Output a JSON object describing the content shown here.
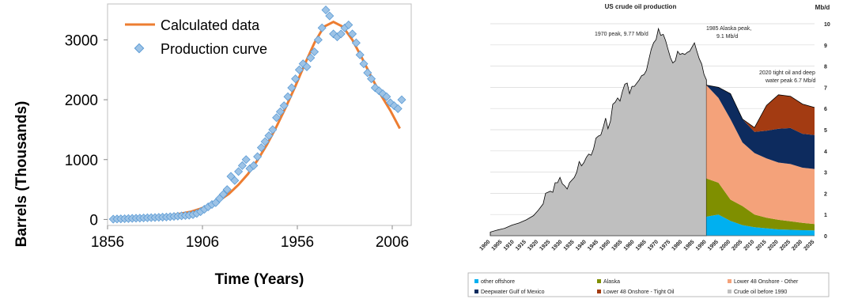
{
  "chart_data": [
    {
      "type": "scatter",
      "title": "",
      "xlabel": "Time (Years)",
      "ylabel": "Barrels (Thousands)",
      "xlim": [
        1856,
        2016
      ],
      "ylim": [
        -100,
        3600
      ],
      "x_ticks": [
        1856,
        1906,
        1956,
        2006
      ],
      "y_ticks": [
        0,
        1000,
        2000,
        3000
      ],
      "legend_position": "top-left",
      "colors": {
        "calculated": "#ed7d31",
        "production": "#9dc3e6",
        "production_edge": "#5b9bd5"
      },
      "series": [
        {
          "name": "Calculated data",
          "kind": "line",
          "x": [
            1860,
            1870,
            1880,
            1890,
            1900,
            1905,
            1910,
            1915,
            1920,
            1925,
            1930,
            1935,
            1940,
            1945,
            1950,
            1955,
            1960,
            1965,
            1970,
            1975,
            1980,
            1985,
            1990,
            1995,
            2000,
            2005,
            2010
          ],
          "y": [
            10,
            20,
            40,
            70,
            130,
            180,
            240,
            320,
            430,
            580,
            760,
            990,
            1250,
            1550,
            1880,
            2230,
            2600,
            2950,
            3220,
            3300,
            3220,
            3000,
            2700,
            2380,
            2080,
            1820,
            1520
          ]
        },
        {
          "name": "Production curve",
          "kind": "scatter",
          "x": [
            1859,
            1861,
            1863,
            1865,
            1867,
            1869,
            1871,
            1873,
            1875,
            1877,
            1879,
            1881,
            1883,
            1885,
            1887,
            1889,
            1891,
            1893,
            1895,
            1897,
            1899,
            1901,
            1903,
            1905,
            1907,
            1909,
            1911,
            1913,
            1915,
            1917,
            1919,
            1921,
            1923,
            1925,
            1927,
            1929,
            1931,
            1933,
            1935,
            1937,
            1939,
            1941,
            1943,
            1945,
            1947,
            1949,
            1951,
            1953,
            1955,
            1957,
            1959,
            1961,
            1963,
            1965,
            1967,
            1969,
            1971,
            1973,
            1975,
            1977,
            1979,
            1981,
            1983,
            1985,
            1987,
            1989,
            1991,
            1993,
            1995,
            1997,
            1999,
            2001,
            2003,
            2005,
            2007,
            2009,
            2011
          ],
          "y": [
            5,
            8,
            10,
            12,
            15,
            18,
            20,
            22,
            25,
            28,
            30,
            32,
            35,
            38,
            40,
            45,
            50,
            55,
            60,
            65,
            70,
            80,
            100,
            130,
            170,
            210,
            250,
            280,
            350,
            420,
            500,
            720,
            650,
            800,
            900,
            1000,
            850,
            900,
            1050,
            1200,
            1300,
            1400,
            1500,
            1700,
            1800,
            1900,
            2050,
            2200,
            2350,
            2500,
            2600,
            2550,
            2700,
            2800,
            3000,
            3200,
            3500,
            3400,
            3100,
            3050,
            3100,
            3200,
            3250,
            3100,
            2950,
            2750,
            2600,
            2450,
            2350,
            2200,
            2150,
            2100,
            2050,
            1950,
            1900,
            1850,
            2000
          ]
        }
      ]
    },
    {
      "type": "area",
      "title": "US crude oil production",
      "unit_label": "Mb/d",
      "ylim": [
        0,
        10
      ],
      "y_ticks": [
        "0",
        "1",
        "2",
        "3",
        "4",
        "5",
        "6",
        "7",
        "8",
        "9",
        "10"
      ],
      "x_tick_labels": [
        "1900",
        "1905",
        "1910",
        "1915",
        "1920",
        "1925",
        "1930",
        "1935",
        "1940",
        "1945",
        "1950",
        "1955",
        "1960",
        "1965",
        "1970",
        "1975",
        "1980",
        "1985",
        "1990",
        "1995",
        "2000",
        "2005",
        "2010",
        "2015",
        "2020",
        "2025",
        "2030",
        "2035"
      ],
      "annotations": [
        {
          "text_lines": [
            "1970 peak, 9.77 Mb/d"
          ]
        },
        {
          "text_lines": [
            "1985 Alaska peak,",
            "9.1 Mb/d"
          ]
        },
        {
          "text_lines": [
            "2020 tight oil and deep",
            "water peak 6.7 Mb/d"
          ]
        }
      ],
      "legend": [
        {
          "label": "other offshore",
          "color": "#00b0f0"
        },
        {
          "label": "Alaska",
          "color": "#7f8f00"
        },
        {
          "label": "Lower 48 Onshore - Other",
          "color": "#f4a27a"
        },
        {
          "label": "Deepwater Gulf of Mexico",
          "color": "#0d2b5e"
        },
        {
          "label": "Lower 48 Onshore - Tight Oil",
          "color": "#a33b12"
        },
        {
          "label": "Crude oil before 1990",
          "color": "#bfbfbf"
        }
      ],
      "series": [
        {
          "name": "Crude oil before 1990",
          "x": [
            1900,
            1903,
            1906,
            1909,
            1912,
            1915,
            1918,
            1920,
            1922,
            1923,
            1925,
            1926,
            1927,
            1928,
            1929,
            1930,
            1931,
            1932,
            1933,
            1935,
            1936,
            1937,
            1938,
            1939,
            1940,
            1941,
            1942,
            1943,
            1944,
            1945,
            1946,
            1947,
            1948,
            1949,
            1950,
            1951,
            1952,
            1953,
            1954,
            1955,
            1956,
            1957,
            1958,
            1959,
            1960,
            1961,
            1962,
            1963,
            1964,
            1965,
            1966,
            1967,
            1968,
            1969,
            1970,
            1971,
            1972,
            1973,
            1974,
            1975,
            1976,
            1977,
            1978,
            1979,
            1980,
            1981,
            1982,
            1983,
            1984,
            1985,
            1986,
            1987,
            1988,
            1989,
            1990
          ],
          "y": [
            0.17,
            0.27,
            0.35,
            0.5,
            0.6,
            0.75,
            0.95,
            1.2,
            1.5,
            2.0,
            2.1,
            2.05,
            2.5,
            2.5,
            2.75,
            2.45,
            2.35,
            2.2,
            2.5,
            2.75,
            3.0,
            3.5,
            3.3,
            3.45,
            3.7,
            3.85,
            3.8,
            4.1,
            4.6,
            4.7,
            4.75,
            5.1,
            5.55,
            5.05,
            5.4,
            6.2,
            6.3,
            6.5,
            6.35,
            6.8,
            7.15,
            7.2,
            6.7,
            7.05,
            7.05,
            7.2,
            7.35,
            7.55,
            7.6,
            7.8,
            8.3,
            8.8,
            9.1,
            9.25,
            9.77,
            9.45,
            9.5,
            9.2,
            8.8,
            8.4,
            8.15,
            8.25,
            8.7,
            8.55,
            8.6,
            8.55,
            8.65,
            8.7,
            8.9,
            9.1,
            8.7,
            8.35,
            8.1,
            7.6,
            7.35
          ]
        },
        {
          "name": "other offshore",
          "x": [
            1990,
            1995,
            2000,
            2005,
            2010,
            2015,
            2020,
            2025,
            2030,
            2035
          ],
          "y": [
            0.9,
            1.0,
            0.7,
            0.5,
            0.4,
            0.35,
            0.3,
            0.28,
            0.26,
            0.25
          ]
        },
        {
          "name": "Alaska",
          "x": [
            1990,
            1995,
            2000,
            2005,
            2010,
            2015,
            2020,
            2025,
            2030,
            2035
          ],
          "y": [
            1.8,
            1.5,
            1.0,
            0.9,
            0.6,
            0.5,
            0.45,
            0.4,
            0.35,
            0.3
          ]
        },
        {
          "name": "Lower 48 Onshore - Other",
          "x": [
            1990,
            1995,
            2000,
            2005,
            2010,
            2015,
            2020,
            2025,
            2030,
            2035
          ],
          "y": [
            4.4,
            4.0,
            3.8,
            3.0,
            2.9,
            2.8,
            2.7,
            2.7,
            2.6,
            2.6
          ]
        },
        {
          "name": "Deepwater Gulf of Mexico",
          "x": [
            1990,
            1995,
            2000,
            2005,
            2010,
            2015,
            2020,
            2025,
            2030,
            2035
          ],
          "y": [
            0.0,
            0.5,
            1.2,
            1.1,
            1.0,
            1.3,
            1.6,
            1.7,
            1.6,
            1.6
          ]
        },
        {
          "name": "Lower 48 Onshore - Tight Oil",
          "x": [
            1990,
            1995,
            2000,
            2005,
            2010,
            2015,
            2020,
            2025,
            2030,
            2035
          ],
          "y": [
            0.0,
            0.0,
            0.0,
            0.0,
            0.2,
            1.2,
            1.6,
            1.5,
            1.4,
            1.3
          ]
        }
      ]
    }
  ]
}
